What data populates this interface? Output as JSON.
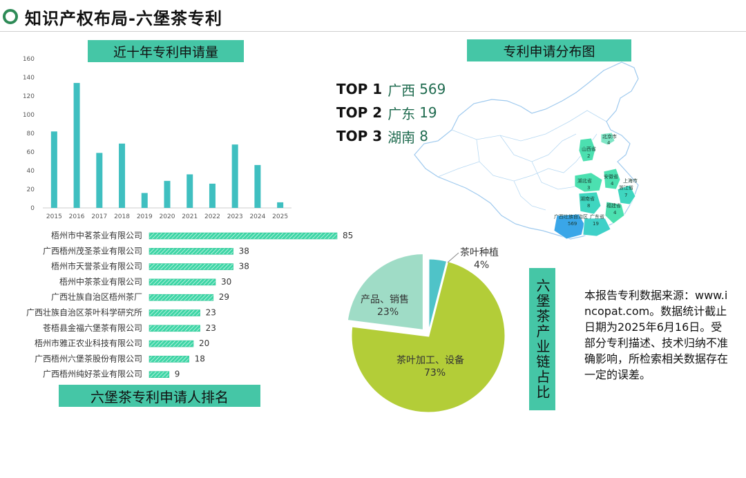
{
  "page": {
    "title": "知识产权布局-六堡茶专利"
  },
  "sections": {
    "yearly_label": "近十年专利申请量",
    "map_label": "专利申请分布图",
    "ranking_label": "六堡茶专利申请人排名",
    "chain_label": "六堡茶产业链占比"
  },
  "top_provinces": [
    {
      "rank": "TOP 1",
      "province": "广西",
      "count": "569"
    },
    {
      "rank": "TOP 2",
      "province": "广东",
      "count": "19"
    },
    {
      "rank": "TOP 3",
      "province": "湖南",
      "count": "8"
    }
  ],
  "source_note": "本报告专利数据来源：www.incopat.com。数据统计截止日期为2025年6月16日。受部分专利描述、技术归纳不准确影响，所检索相关数据存在一定的误差。",
  "colors": {
    "accent": "#45c6a6",
    "bar": "#3fbfc0",
    "hbar": "#3ed6a6",
    "pie_processing": "#b3cd38",
    "pie_sales": "#9fdcc6",
    "pie_planting": "#4fc3c8",
    "map_high": "#3aa6e8",
    "map_mid": "#4ce0b0",
    "map_low": "#7fe6c6"
  },
  "map_regions": [
    {
      "name": "北京市",
      "value": "4"
    },
    {
      "name": "山西省",
      "value": "2"
    },
    {
      "name": "湖北省",
      "value": "3"
    },
    {
      "name": "安徽省",
      "value": "4"
    },
    {
      "name": "上海市",
      "value": ""
    },
    {
      "name": "浙江省",
      "value": "7"
    },
    {
      "name": "湖南省",
      "value": "8"
    },
    {
      "name": "福建省",
      "value": "4"
    },
    {
      "name": "广西壮族自治区",
      "value": "569"
    },
    {
      "name": "广东省",
      "value": "19"
    }
  ],
  "chart_data": [
    {
      "type": "bar",
      "categories": [
        "2015",
        "2016",
        "2017",
        "2018",
        "2019",
        "2020",
        "2021",
        "2022",
        "2023",
        "2024",
        "2025"
      ],
      "values": [
        82,
        134,
        59,
        69,
        16,
        29,
        36,
        26,
        68,
        46,
        6
      ],
      "title": "",
      "xlabel": "",
      "ylabel": "",
      "ylim": [
        0,
        160
      ],
      "yticks": [
        "0",
        "20",
        "40",
        "60",
        "80",
        "100",
        "120",
        "140",
        "160"
      ],
      "grid": false
    },
    {
      "type": "bar",
      "orientation": "horizontal",
      "categories": [
        "梧州市中茗茶业有限公司",
        "广西梧州茂圣茶业有限公司",
        "梧州市天誉茶业有限公司",
        "梧州中茶茶业有限公司",
        "广西壮族自治区梧州茶厂",
        "广西壮族自治区茶叶科学研究所",
        "苍梧县金福六堡茶有限公司",
        "梧州市雅正农业科技有限公司",
        "广西梧州六堡茶股份有限公司",
        "广西梧州纯好茶业有限公司"
      ],
      "values": [
        85,
        38,
        38,
        30,
        29,
        23,
        23,
        20,
        18,
        9
      ],
      "value_labels": [
        "85",
        "38",
        "38",
        "30",
        "29",
        "23",
        "23",
        "20",
        "18",
        "9"
      ],
      "title": "",
      "xlabel": "",
      "ylabel": ""
    },
    {
      "type": "pie",
      "slices": [
        {
          "label": "茶叶种植",
          "pct_label": "4%",
          "value": 4
        },
        {
          "label": "茶叶加工、设备",
          "pct_label": "73%",
          "value": 73
        },
        {
          "label": "产品、销售",
          "pct_label": "23%",
          "value": 23
        }
      ],
      "title": ""
    }
  ]
}
